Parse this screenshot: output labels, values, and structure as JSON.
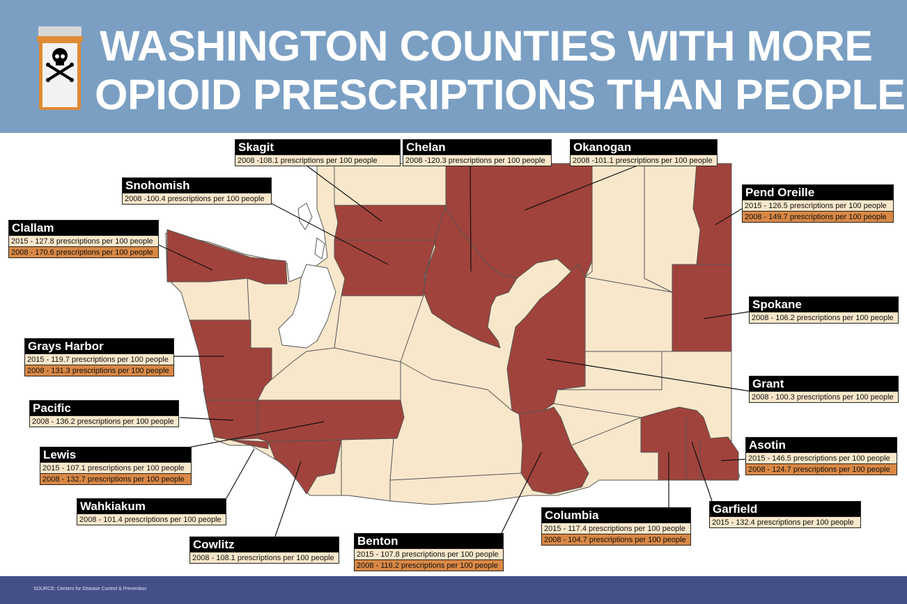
{
  "header": {
    "title_line1": "WASHINGTON COUNTIES WITH MORE",
    "title_line2": "OPIOID PRESCRIPTIONS THAN PEOPLE",
    "icon": "pill-bottle-skull-crossbones-icon"
  },
  "colors": {
    "header_bg": "#7a9fc3",
    "footer_bg": "#454f87",
    "highlighted_county": "#a0433c",
    "other_county": "#f8e7cb",
    "row_2015": "#f8e7cb",
    "row_2008": "#d98845"
  },
  "callouts": [
    {
      "name": "Skagit",
      "rows": [
        {
          "text": "2008 -108.1 prescriptions per 100 people",
          "year": "2008",
          "value": 108.1
        }
      ]
    },
    {
      "name": "Chelan",
      "rows": [
        {
          "text": "2008 -120.3 prescriptions per 100 people",
          "year": "2008",
          "value": 120.3
        }
      ]
    },
    {
      "name": "Okanogan",
      "rows": [
        {
          "text": "2008 -101.1 prescriptions per 100 people",
          "year": "2008",
          "value": 101.1
        }
      ]
    },
    {
      "name": "Snohomish",
      "rows": [
        {
          "text": "2008 -100.4 prescriptions per 100 people",
          "year": "2008",
          "value": 100.4
        }
      ]
    },
    {
      "name": "Pend Oreille",
      "rows": [
        {
          "text": "2015 - 126.5 prescriptions per 100 people",
          "year": "2015",
          "value": 126.5
        },
        {
          "text": "2008 - 149.7 prescriptions per 100 people",
          "year": "2008",
          "value": 149.7
        }
      ]
    },
    {
      "name": "Clallam",
      "rows": [
        {
          "text": "2015 - 127.8 prescriptions per 100 people",
          "year": "2015",
          "value": 127.8
        },
        {
          "text": "2008 - 170.6 prescriptions per 100 people",
          "year": "2008",
          "value": 170.6
        }
      ]
    },
    {
      "name": "Spokane",
      "rows": [
        {
          "text": "2008 - 106.2 prescriptions per 100 people",
          "year": "2008",
          "value": 106.2
        }
      ]
    },
    {
      "name": "Grays Harbor",
      "rows": [
        {
          "text": "2015 - 119.7 prescriptions per 100 people",
          "year": "2015",
          "value": 119.7
        },
        {
          "text": "2008 - 131.3 prescriptions per 100 people",
          "year": "2008",
          "value": 131.3
        }
      ]
    },
    {
      "name": "Grant",
      "rows": [
        {
          "text": "2008 - 100.3 prescriptions per 100 people",
          "year": "2008",
          "value": 100.3
        }
      ]
    },
    {
      "name": "Pacific",
      "rows": [
        {
          "text": "2008 - 136.2 prescriptions per 100 people",
          "year": "2008",
          "value": 136.2
        }
      ]
    },
    {
      "name": "Asotin",
      "rows": [
        {
          "text": "2015 - 146.5 prescriptions per 100 people",
          "year": "2015",
          "value": 146.5
        },
        {
          "text": "2008 - 124.7 prescriptions per 100 people",
          "year": "2008",
          "value": 124.7
        }
      ]
    },
    {
      "name": "Lewis",
      "rows": [
        {
          "text": "2015 - 107.1 prescriptions per 100 people",
          "year": "2015",
          "value": 107.1
        },
        {
          "text": "2008 - 132.7 prescriptions per 100 people",
          "year": "2008",
          "value": 132.7
        }
      ]
    },
    {
      "name": "Wahkiakum",
      "rows": [
        {
          "text": "2008 - 101.4 prescriptions per 100 people",
          "year": "2008",
          "value": 101.4
        }
      ]
    },
    {
      "name": "Garfield",
      "rows": [
        {
          "text": "2015 - 132.4 prescriptions per 100 people",
          "year": "2015",
          "value": 132.4
        }
      ]
    },
    {
      "name": "Columbia",
      "rows": [
        {
          "text": "2015 - 117.4 prescriptions per 100 people",
          "year": "2015",
          "value": 117.4
        },
        {
          "text": "2008 - 104.7 prescriptions per 100 people",
          "year": "2008",
          "value": 104.7
        }
      ]
    },
    {
      "name": "Cowlitz",
      "rows": [
        {
          "text": "2008 - 108.1 prescriptions per 100 people",
          "year": "2008",
          "value": 108.1
        }
      ]
    },
    {
      "name": "Benton",
      "rows": [
        {
          "text": "2015 - 107.8 prescriptions per 100 people",
          "year": "2015",
          "value": 107.8
        },
        {
          "text": "2008 - 116.2 prescriptions per 100 people",
          "year": "2008",
          "value": 116.2
        }
      ]
    }
  ],
  "footer": {
    "source": "SOURCE: Centers for Disease Control & Prevention"
  }
}
